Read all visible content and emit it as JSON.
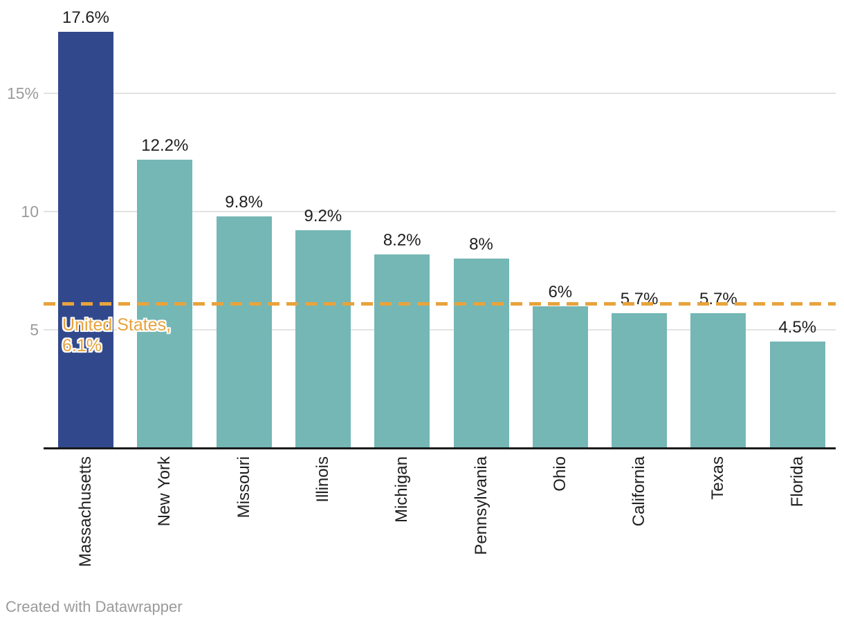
{
  "chart_data": {
    "type": "bar",
    "categories": [
      "Massachusetts",
      "New York",
      "Missouri",
      "Illinois",
      "Michigan",
      "Pennsylvania",
      "Ohio",
      "California",
      "Texas",
      "Florida"
    ],
    "values": [
      17.6,
      12.2,
      9.8,
      9.2,
      8.2,
      8,
      6,
      5.7,
      5.7,
      4.5
    ],
    "value_labels": [
      "17.6%",
      "12.2%",
      "9.8%",
      "9.2%",
      "8.2%",
      "8%",
      "6%",
      "5.7%",
      "5.7%",
      "4.5%"
    ],
    "title": "",
    "xlabel": "",
    "ylabel": "",
    "ylim": [
      0,
      18.6
    ],
    "grid": true,
    "legend": null,
    "y_ticks": [
      {
        "value": 5,
        "label": "5"
      },
      {
        "value": 10,
        "label": "10"
      },
      {
        "value": 15,
        "label": "15%"
      }
    ],
    "reference_line": {
      "value": 6.1,
      "label_lines": [
        "United States,",
        "6.1%"
      ]
    },
    "highlight_index": 0,
    "colors": {
      "bar": "#74b7b5",
      "highlight_bar": "#31498c",
      "reference": "#e8a33d",
      "grid": "#e3e3e3",
      "axis": "#1a1a1a",
      "tick_text": "#9b9b9b",
      "label_text": "#1f1f1f",
      "footer_text": "#9a9a9a"
    }
  },
  "footer": {
    "credit": "Created with Datawrapper"
  }
}
